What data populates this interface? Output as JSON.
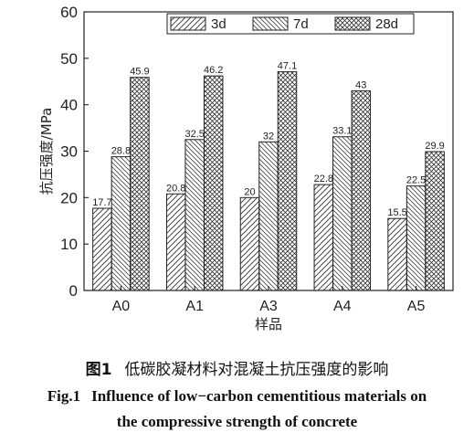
{
  "chart_data": {
    "type": "bar",
    "categories": [
      "A0",
      "A1",
      "A3",
      "A4",
      "A5"
    ],
    "series": [
      {
        "name": "3d",
        "values": [
          17.7,
          20.8,
          20,
          22.8,
          15.5
        ],
        "pattern": "diag-right"
      },
      {
        "name": "7d",
        "values": [
          28.8,
          32.5,
          32,
          33.1,
          22.5
        ],
        "pattern": "diag-left"
      },
      {
        "name": "28d",
        "values": [
          45.9,
          46.2,
          47.1,
          43,
          29.9
        ],
        "pattern": "crosshatch"
      }
    ],
    "data_labels": [
      [
        "17.7",
        "20.8",
        "20",
        "22.8",
        "15.5"
      ],
      [
        "28.8",
        "32.5",
        "32",
        "33.1",
        "22.5"
      ],
      [
        "45.9",
        "46.2",
        "47.1",
        "43",
        "29.9"
      ]
    ],
    "xlabel": "样品",
    "ylabel": "抗压强度/MPa",
    "ylim": [
      0,
      60
    ],
    "yticks": [
      0,
      10,
      20,
      30,
      40,
      50,
      60
    ],
    "grid": false,
    "legend_position": "top-right",
    "colors": {
      "bar_fill": "#ffffff",
      "bar_stroke": "#222222",
      "hatch": "#333333"
    }
  },
  "caption": {
    "cn_number": "图1",
    "cn_text": "低碳胶凝材料对混凝土抗压强度的影响",
    "en_number": "Fig.1",
    "en_line1": "Influence of low−carbon cementitious materials on",
    "en_line2": "the compressive strength of concrete"
  }
}
